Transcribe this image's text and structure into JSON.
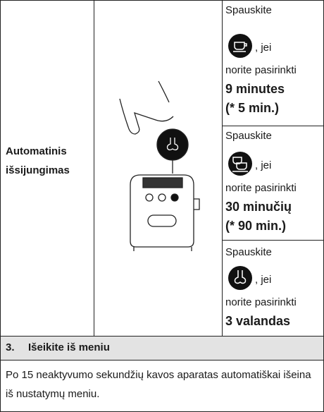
{
  "table": {
    "label_lines": [
      "Automatinis",
      "išsijungimas"
    ],
    "options": [
      {
        "press": "Spauskite",
        "if": ", jei",
        "choose": "norite pasirinkti",
        "value_lines": [
          "9 minutes",
          "(* 5 min.)"
        ]
      },
      {
        "press": "Spauskite",
        "if": ", jei",
        "choose": "norite pasirinkti",
        "value_lines": [
          "30 minučių",
          "(* 90 min.)"
        ]
      },
      {
        "press": "Spauskite",
        "if": ", jei",
        "choose": "norite pasirinkti",
        "value_lines": [
          "3 valandas"
        ]
      }
    ]
  },
  "section": {
    "number": "3.",
    "title": "Išeikite iš meniu",
    "text": "Po 15 neaktyvumo sekundžių kavos aparatas automatiškai išeina iš nustatymų meniu."
  }
}
